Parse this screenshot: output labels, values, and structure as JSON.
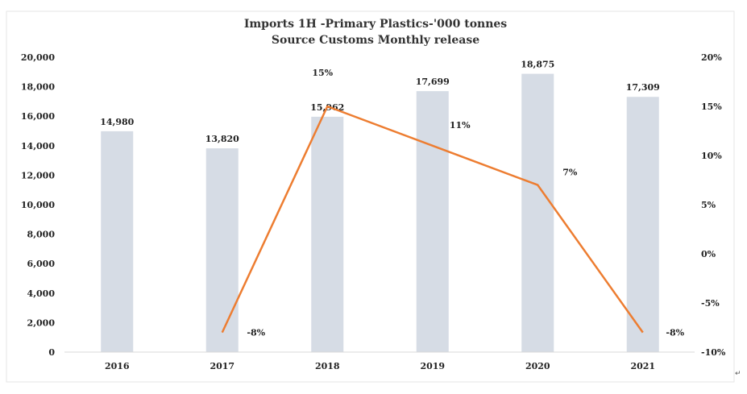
{
  "chart_data": {
    "type": "bar",
    "title": "Imports 1H -Primary Plastics-'000 tonnes",
    "subtitle": "Source Customs Monthly release",
    "categories": [
      "2016",
      "2017",
      "2018",
      "2019",
      "2020",
      "2021"
    ],
    "series": [
      {
        "type": "bar",
        "axis": "left",
        "values": [
          14980,
          13820,
          15962,
          17699,
          18875,
          17309
        ],
        "labels": [
          "14,980",
          "13,820",
          "15,962",
          "17,699",
          "18,875",
          "17,309"
        ],
        "color": "#d6dce5"
      },
      {
        "type": "line",
        "axis": "right",
        "points": [
          {
            "category": "2017",
            "value": -8,
            "label": "-8%"
          },
          {
            "category": "2018",
            "value": 15,
            "label": "15%"
          },
          {
            "category": "2019",
            "value": 11,
            "label": "11%"
          },
          {
            "category": "2020",
            "value": 7,
            "label": "7%"
          },
          {
            "category": "2021",
            "value": -8,
            "label": "-8%"
          }
        ],
        "color": "#ed7d31"
      }
    ],
    "y_left": {
      "range": [
        0,
        20000
      ],
      "ticks": [
        0,
        2000,
        4000,
        6000,
        8000,
        10000,
        12000,
        14000,
        16000,
        18000,
        20000
      ],
      "tick_labels": [
        "0",
        "2,000",
        "4,000",
        "6,000",
        "8,000",
        "10,000",
        "12,000",
        "14,000",
        "16,000",
        "18,000",
        "20,000"
      ]
    },
    "y_right": {
      "range": [
        -10,
        20
      ],
      "ticks": [
        -10,
        -5,
        0,
        5,
        10,
        15,
        20
      ],
      "tick_labels": [
        "-10%",
        "-5%",
        "0%",
        "5%",
        "10%",
        "15%",
        "20%"
      ]
    },
    "grid": false,
    "legend": "none",
    "corner_mark": "↵"
  }
}
